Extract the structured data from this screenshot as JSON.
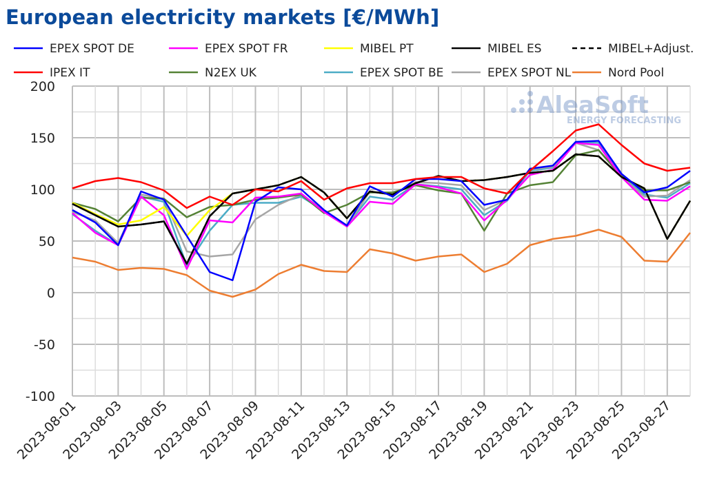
{
  "chart_data": {
    "type": "line",
    "title": "European electricity markets [€/MWh]",
    "xlabel": "",
    "ylabel": "",
    "ylim": [
      -100,
      200
    ],
    "yticks": [
      -100,
      -50,
      0,
      50,
      100,
      150,
      200
    ],
    "grid": true,
    "legend_position": "top",
    "x": [
      "2023-08-01",
      "2023-08-02",
      "2023-08-03",
      "2023-08-04",
      "2023-08-05",
      "2023-08-06",
      "2023-08-07",
      "2023-08-08",
      "2023-08-09",
      "2023-08-10",
      "2023-08-11",
      "2023-08-12",
      "2023-08-13",
      "2023-08-14",
      "2023-08-15",
      "2023-08-16",
      "2023-08-17",
      "2023-08-18",
      "2023-08-19",
      "2023-08-20",
      "2023-08-21",
      "2023-08-22",
      "2023-08-23",
      "2023-08-24",
      "2023-08-25",
      "2023-08-26",
      "2023-08-27",
      "2023-08-28"
    ],
    "xtick_labels": [
      "2023-08-01",
      "2023-08-03",
      "2023-08-05",
      "2023-08-07",
      "2023-08-09",
      "2023-08-11",
      "2023-08-13",
      "2023-08-15",
      "2023-08-17",
      "2023-08-19",
      "2023-08-21",
      "2023-08-23",
      "2023-08-25",
      "2023-08-27"
    ],
    "series": [
      {
        "name": "EPEX SPOT DE",
        "color": "#0000ff",
        "dash": false,
        "values": [
          80,
          68,
          46,
          98,
          90,
          55,
          20,
          12,
          88,
          102,
          100,
          80,
          65,
          103,
          93,
          110,
          110,
          108,
          85,
          90,
          120,
          123,
          146,
          147,
          115,
          97,
          102,
          118
        ]
      },
      {
        "name": "EPEX SPOT FR",
        "color": "#ff00ff",
        "dash": false,
        "values": [
          77,
          58,
          46,
          93,
          75,
          23,
          70,
          68,
          92,
          93,
          96,
          78,
          64,
          88,
          86,
          105,
          102,
          96,
          70,
          90,
          114,
          119,
          145,
          143,
          112,
          90,
          89,
          103
        ]
      },
      {
        "name": "MIBEL PT",
        "color": "#ffff00",
        "dash": false,
        "values": [
          87,
          76,
          66,
          70,
          83,
          55,
          80,
          96,
          100,
          104,
          112,
          97,
          72,
          98,
          95,
          106,
          113,
          108,
          109,
          112,
          116,
          118,
          134,
          132,
          112,
          101,
          52,
          89
        ]
      },
      {
        "name": "MIBEL ES",
        "color": "#000000",
        "dash": false,
        "values": [
          86,
          75,
          64,
          66,
          69,
          28,
          74,
          96,
          100,
          104,
          112,
          97,
          72,
          98,
          95,
          106,
          113,
          108,
          109,
          112,
          116,
          118,
          134,
          132,
          112,
          101,
          52,
          89
        ]
      },
      {
        "name": "MIBEL+Adjust.",
        "color": "#000000",
        "dash": true,
        "values": [
          86,
          75,
          64,
          66,
          69,
          28,
          74,
          96,
          100,
          104,
          112,
          97,
          72,
          98,
          95,
          106,
          113,
          108,
          109,
          112,
          116,
          118,
          134,
          132,
          112,
          101,
          52,
          89
        ]
      },
      {
        "name": "IPEX IT",
        "color": "#ff0000",
        "dash": false,
        "values": [
          101,
          108,
          111,
          107,
          99,
          82,
          93,
          85,
          100,
          98,
          108,
          90,
          101,
          106,
          106,
          110,
          112,
          112,
          101,
          96,
          118,
          137,
          157,
          163,
          143,
          125,
          118,
          121
        ]
      },
      {
        "name": "N2EX UK",
        "color": "#548235",
        "dash": false,
        "values": [
          87,
          81,
          69,
          92,
          91,
          73,
          83,
          85,
          90,
          92,
          95,
          77,
          85,
          97,
          97,
          104,
          99,
          96,
          60,
          96,
          104,
          107,
          133,
          138,
          113,
          99,
          99,
          107
        ]
      },
      {
        "name": "EPEX SPOT BE",
        "color": "#4bacc6",
        "dash": false,
        "values": [
          76,
          60,
          46,
          93,
          88,
          26,
          60,
          85,
          87,
          87,
          93,
          79,
          65,
          93,
          90,
          105,
          103,
          100,
          75,
          89,
          118,
          121,
          146,
          145,
          113,
          95,
          92,
          106
        ]
      },
      {
        "name": "EPEX SPOT NL",
        "color": "#a6a6a6",
        "dash": false,
        "values": [
          78,
          70,
          48,
          95,
          91,
          40,
          35,
          37,
          71,
          85,
          95,
          80,
          64,
          98,
          95,
          107,
          106,
          104,
          80,
          90,
          119,
          122,
          145,
          138,
          112,
          93,
          94,
          109
        ]
      },
      {
        "name": "Nord Pool",
        "color": "#ed7d31",
        "dash": false,
        "values": [
          34,
          30,
          22,
          24,
          23,
          17,
          2,
          -4,
          3,
          18,
          27,
          21,
          20,
          42,
          38,
          31,
          35,
          37,
          20,
          28,
          46,
          52,
          55,
          61,
          54,
          31,
          30,
          58
        ]
      }
    ]
  },
  "watermark": {
    "brand": "AleaSoft",
    "tagline": "ENERGY FORECASTING"
  }
}
